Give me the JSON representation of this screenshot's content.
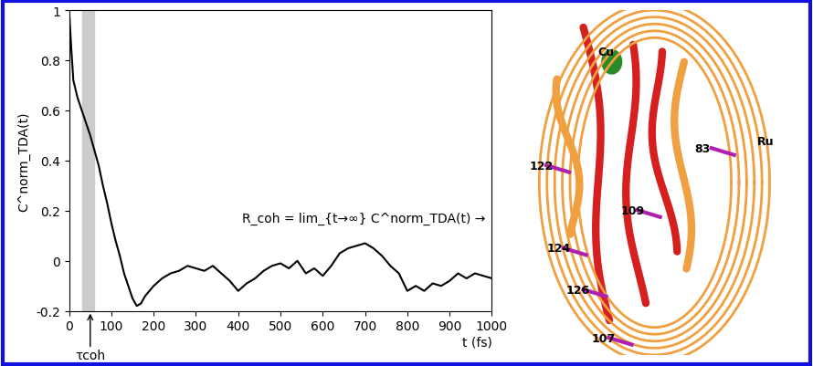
{
  "chart_data": {
    "type": "line",
    "y_label": "C^norm_TDA(t)",
    "x_label": "t (fs)",
    "annotation": "R_coh = lim_{t→∞} C^norm_TDA(t) →",
    "marker_label": "τcoh",
    "marker_x": 50,
    "shaded": [
      30,
      60
    ],
    "color": "#000000",
    "x": [
      0,
      5,
      10,
      20,
      30,
      40,
      50,
      60,
      70,
      80,
      90,
      100,
      110,
      120,
      130,
      140,
      150,
      160,
      170,
      180,
      200,
      220,
      240,
      260,
      280,
      300,
      320,
      340,
      360,
      380,
      400,
      420,
      440,
      460,
      480,
      500,
      520,
      540,
      560,
      580,
      600,
      620,
      640,
      660,
      680,
      700,
      720,
      740,
      760,
      780,
      800,
      820,
      840,
      860,
      880,
      900,
      920,
      940,
      960,
      980,
      1000
    ],
    "values": [
      1.0,
      0.85,
      0.72,
      0.65,
      0.6,
      0.55,
      0.5,
      0.44,
      0.38,
      0.3,
      0.23,
      0.15,
      0.08,
      0.02,
      -0.05,
      -0.1,
      -0.15,
      -0.18,
      -0.17,
      -0.14,
      -0.1,
      -0.07,
      -0.05,
      -0.04,
      -0.02,
      -0.03,
      -0.04,
      -0.02,
      -0.05,
      -0.08,
      -0.12,
      -0.09,
      -0.07,
      -0.04,
      -0.02,
      -0.01,
      -0.03,
      0.0,
      -0.05,
      -0.03,
      -0.06,
      -0.02,
      0.03,
      0.05,
      0.06,
      0.07,
      0.05,
      0.02,
      -0.02,
      -0.05,
      -0.12,
      -0.1,
      -0.12,
      -0.09,
      -0.1,
      -0.08,
      -0.05,
      -0.07,
      -0.05,
      -0.06,
      -0.07
    ],
    "xlim": [
      0,
      1000
    ],
    "xticks": [
      0,
      100,
      200,
      300,
      400,
      500,
      600,
      700,
      800,
      900,
      1000
    ],
    "ylim": [
      -0.2,
      1
    ],
    "yticks": [
      -0.2,
      0,
      0.2,
      0.4,
      0.6,
      0.8,
      1
    ],
    "grid": false
  },
  "structure": {
    "labels": [
      "Cu",
      "Ru",
      "122",
      "83",
      "109",
      "124",
      "126",
      "107"
    ]
  }
}
